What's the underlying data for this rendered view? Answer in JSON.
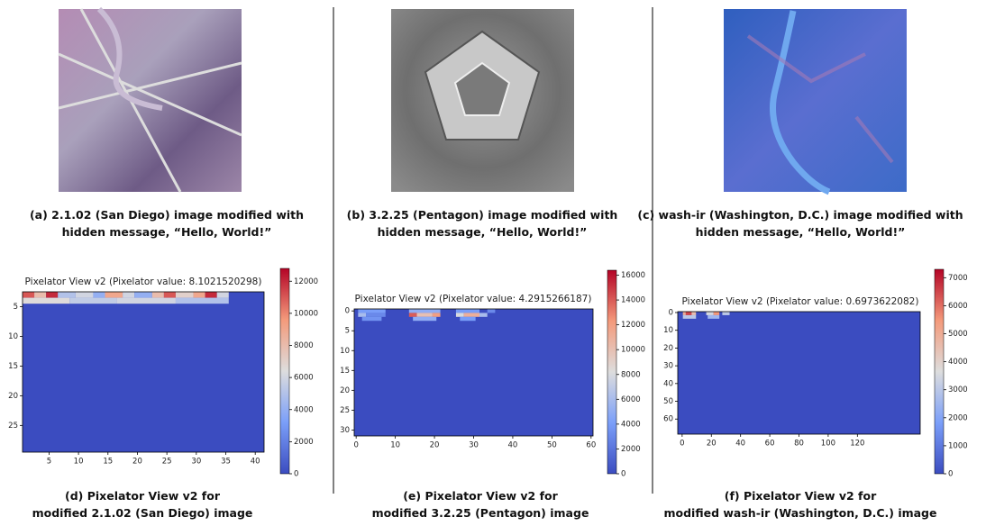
{
  "captions": [
    [
      "(a) 2.1.02 (San Diego) image modified with",
      "hidden message,  “Hello, World!”"
    ],
    [
      "(b) 3.2.25 (Pentagon) image modified with",
      "hidden message, “Hello, World!”"
    ],
    [
      "(c) wash-ir (Washington, D.C.) image modified with",
      "hidden message, “Hello, World!”"
    ],
    [
      "(d) Pixelator View v2  for",
      "modified 2.1.02 (San Diego) image"
    ],
    [
      "(e) Pixelator View v2  for",
      "modified 3.2.25 (Pentagon) image"
    ],
    [
      "(f) Pixelator View v2  for",
      "modified wash-ir (Washington, D.C.) image"
    ]
  ],
  "chart_data": [
    {
      "type": "heatmap",
      "title": "Pixelator View v2 (Pixelator value: 8.1021520298)",
      "xlim": [
        0.5,
        41.5
      ],
      "ylim": [
        2.5,
        29.5
      ],
      "xticks": [
        5,
        10,
        15,
        20,
        25,
        30,
        35,
        40
      ],
      "yticks": [
        5,
        10,
        15,
        20,
        25
      ],
      "clim": [
        0,
        12800
      ],
      "cticks": [
        0,
        2000,
        4000,
        6000,
        8000,
        10000,
        12000
      ],
      "cells": [
        {
          "x": [
            0.5,
            2.5
          ],
          "y": [
            2.5,
            3.5
          ],
          "value": 11000
        },
        {
          "x": [
            2.5,
            4.5
          ],
          "y": [
            2.5,
            3.5
          ],
          "value": 8000
        },
        {
          "x": [
            4.5,
            6.5
          ],
          "y": [
            2.5,
            3.5
          ],
          "value": 12000
        },
        {
          "x": [
            6.5,
            9.5
          ],
          "y": [
            2.5,
            3.5
          ],
          "value": 5000
        },
        {
          "x": [
            9.5,
            12.5
          ],
          "y": [
            2.5,
            3.5
          ],
          "value": 6000
        },
        {
          "x": [
            12.5,
            14.5
          ],
          "y": [
            2.5,
            3.5
          ],
          "value": 4000
        },
        {
          "x": [
            14.5,
            17.5
          ],
          "y": [
            2.5,
            3.5
          ],
          "value": 9000
        },
        {
          "x": [
            17.5,
            19.5
          ],
          "y": [
            2.5,
            3.5
          ],
          "value": 6000
        },
        {
          "x": [
            19.5,
            22.5
          ],
          "y": [
            2.5,
            3.5
          ],
          "value": 4000
        },
        {
          "x": [
            22.5,
            24.5
          ],
          "y": [
            2.5,
            3.5
          ],
          "value": 8000
        },
        {
          "x": [
            24.5,
            26.5
          ],
          "y": [
            2.5,
            3.5
          ],
          "value": 11000
        },
        {
          "x": [
            26.5,
            29.5
          ],
          "y": [
            2.5,
            3.5
          ],
          "value": 7000
        },
        {
          "x": [
            29.5,
            31.5
          ],
          "y": [
            2.5,
            3.5
          ],
          "value": 9000
        },
        {
          "x": [
            31.5,
            33.5
          ],
          "y": [
            2.5,
            3.5
          ],
          "value": 12000
        },
        {
          "x": [
            33.5,
            35.5
          ],
          "y": [
            2.5,
            3.5
          ],
          "value": 6000
        },
        {
          "x": [
            0.5,
            8.5
          ],
          "y": [
            3.5,
            4.5
          ],
          "value": 6500
        },
        {
          "x": [
            8.5,
            16.5
          ],
          "y": [
            3.5,
            4.5
          ],
          "value": 5500
        },
        {
          "x": [
            16.5,
            26.5
          ],
          "y": [
            3.5,
            4.5
          ],
          "value": 6000
        },
        {
          "x": [
            26.5,
            35.5
          ],
          "y": [
            3.5,
            4.5
          ],
          "value": 5000
        }
      ]
    },
    {
      "type": "heatmap",
      "title": "Pixelator View v2 (Pixelator value: 4.2915266187)",
      "xlim": [
        -0.5,
        60.5
      ],
      "ylim": [
        -0.5,
        31.5
      ],
      "xticks": [
        0,
        10,
        20,
        30,
        40,
        50,
        60
      ],
      "yticks": [
        0,
        5,
        10,
        15,
        20,
        25,
        30
      ],
      "clim": [
        0,
        16400
      ],
      "cticks": [
        0,
        2000,
        4000,
        6000,
        8000,
        10000,
        12000,
        14000,
        16000
      ],
      "cells": [
        {
          "x": [
            0.5,
            7.5
          ],
          "y": [
            -0.5,
            0.5
          ],
          "value": 4000
        },
        {
          "x": [
            13.5,
            21.5
          ],
          "y": [
            -0.5,
            0.5
          ],
          "value": 5000
        },
        {
          "x": [
            25.5,
            31.5
          ],
          "y": [
            -0.5,
            0.5
          ],
          "value": 4000
        },
        {
          "x": [
            33.5,
            35.5
          ],
          "y": [
            -0.5,
            0.5
          ],
          "value": 3000
        },
        {
          "x": [
            0.5,
            2.5
          ],
          "y": [
            0.5,
            1.5
          ],
          "value": 6000
        },
        {
          "x": [
            2.5,
            7.5
          ],
          "y": [
            0.5,
            1.5
          ],
          "value": 3000
        },
        {
          "x": [
            13.5,
            15.5
          ],
          "y": [
            0.5,
            1.5
          ],
          "value": 14000
        },
        {
          "x": [
            15.5,
            19.5
          ],
          "y": [
            0.5,
            1.5
          ],
          "value": 10000
        },
        {
          "x": [
            19.5,
            21.5
          ],
          "y": [
            0.5,
            1.5
          ],
          "value": 12000
        },
        {
          "x": [
            25.5,
            27.5
          ],
          "y": [
            0.5,
            1.5
          ],
          "value": 8000
        },
        {
          "x": [
            27.5,
            31.5
          ],
          "y": [
            0.5,
            1.5
          ],
          "value": 11000
        },
        {
          "x": [
            31.5,
            33.5
          ],
          "y": [
            0.5,
            1.5
          ],
          "value": 6000
        },
        {
          "x": [
            1.5,
            6.5
          ],
          "y": [
            1.5,
            2.5
          ],
          "value": 3500
        },
        {
          "x": [
            14.5,
            20.5
          ],
          "y": [
            1.5,
            2.5
          ],
          "value": 5000
        },
        {
          "x": [
            26.5,
            30.5
          ],
          "y": [
            1.5,
            2.5
          ],
          "value": 4000
        }
      ]
    },
    {
      "type": "heatmap",
      "title": "Pixelator View v2 (Pixelator value: 0.6973622082)",
      "xlim": [
        -3,
        163
      ],
      "ylim": [
        -0.5,
        68.5
      ],
      "xticks": [
        0,
        20,
        40,
        60,
        80,
        100,
        120
      ],
      "yticks": [
        0,
        10,
        20,
        30,
        40,
        50,
        60
      ],
      "clim": [
        0,
        7300
      ],
      "cticks": [
        0,
        1000,
        2000,
        3000,
        4000,
        5000,
        6000,
        7000
      ],
      "cells": [
        {
          "x": [
            0.5,
            2.5
          ],
          "y": [
            -0.5,
            1.5
          ],
          "value": 5000
        },
        {
          "x": [
            2.5,
            6.5
          ],
          "y": [
            -0.5,
            1.5
          ],
          "value": 6500
        },
        {
          "x": [
            6.5,
            9.5
          ],
          "y": [
            -0.5,
            1.5
          ],
          "value": 4500
        },
        {
          "x": [
            16.5,
            21.5
          ],
          "y": [
            -0.5,
            1.5
          ],
          "value": 3500
        },
        {
          "x": [
            21.5,
            25.5
          ],
          "y": [
            -0.5,
            1.5
          ],
          "value": 5500
        },
        {
          "x": [
            27.5,
            32.5
          ],
          "y": [
            -0.5,
            1.5
          ],
          "value": 3000
        },
        {
          "x": [
            0.5,
            9.5
          ],
          "y": [
            1.5,
            3.5
          ],
          "value": 3000
        },
        {
          "x": [
            17.5,
            25.5
          ],
          "y": [
            1.5,
            3.5
          ],
          "value": 2500
        }
      ]
    }
  ]
}
